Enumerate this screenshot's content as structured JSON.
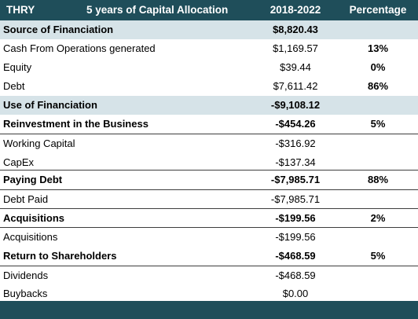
{
  "header": {
    "ticker": "THRY",
    "title": "5 years of Capital Allocation",
    "period": "2018-2022",
    "percentage": "Percentage"
  },
  "rows": [
    {
      "label": "Source of Financiation",
      "value": "$8,820.43",
      "pct": ""
    },
    {
      "label": "Cash From Operations generated",
      "value": "$1,169.57",
      "pct": "13%"
    },
    {
      "label": "Equity",
      "value": "$39.44",
      "pct": "0%"
    },
    {
      "label": "Debt",
      "value": "$7,611.42",
      "pct": "86%"
    },
    {
      "label": "Use of Financiation",
      "value": "-$9,108.12",
      "pct": ""
    },
    {
      "label": "Reinvestment in the Business",
      "value": "-$454.26",
      "pct": "5%"
    },
    {
      "label": "Working Capital",
      "value": "-$316.92",
      "pct": ""
    },
    {
      "label": "CapEx",
      "value": "-$137.34",
      "pct": ""
    },
    {
      "label": "Paying Debt",
      "value": "-$7,985.71",
      "pct": "88%"
    },
    {
      "label": "Debt Paid",
      "value": "-$7,985.71",
      "pct": ""
    },
    {
      "label": "Acquisitions",
      "value": "-$199.56",
      "pct": "2%"
    },
    {
      "label": "Acquisitions",
      "value": "-$199.56",
      "pct": ""
    },
    {
      "label": "Return to Shareholders",
      "value": "-$468.59",
      "pct": "5%"
    },
    {
      "label": "Dividends",
      "value": "-$468.59",
      "pct": ""
    },
    {
      "label": "Buybacks",
      "value": "$0.00",
      "pct": ""
    }
  ],
  "colors": {
    "header_bg": "#1f4e5a",
    "section_bg": "#d6e3e8"
  }
}
